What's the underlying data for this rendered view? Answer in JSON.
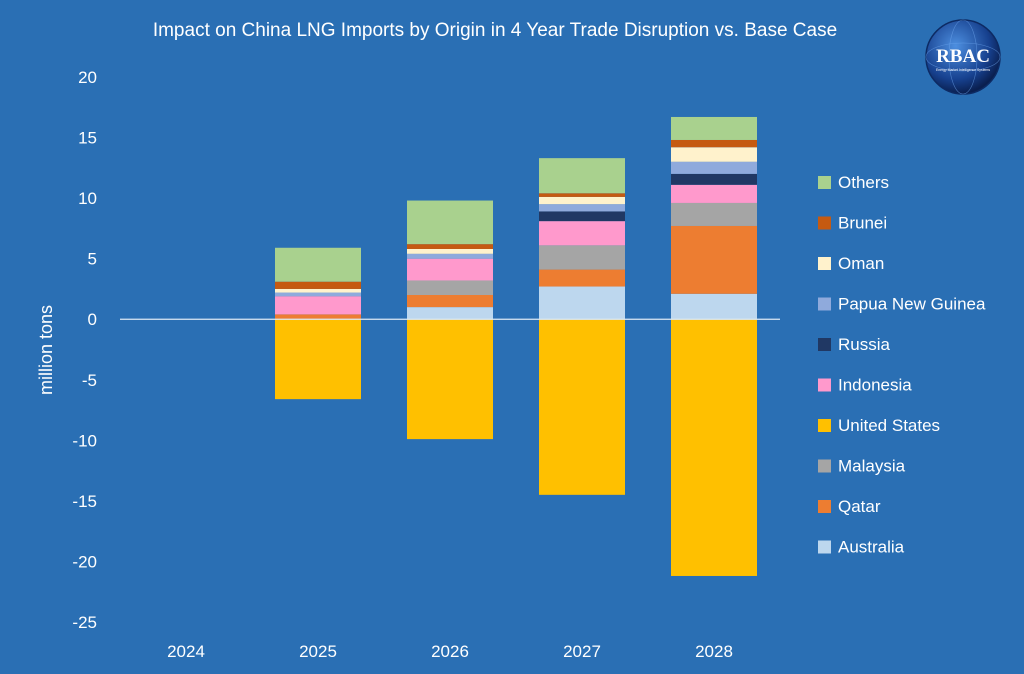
{
  "chart_data": {
    "type": "bar",
    "stacked": true,
    "title": "Impact on China LNG Imports by Origin in 4 Year Trade Disruption vs. Base Case",
    "xlabel": "",
    "ylabel": "million tons",
    "ylim": [
      -25,
      20
    ],
    "yticks": [
      20,
      15,
      10,
      5,
      0,
      -5,
      -10,
      -15,
      -20,
      -25
    ],
    "categories": [
      "2024",
      "2025",
      "2026",
      "2027",
      "2028"
    ],
    "grid": false,
    "legend_position": "right",
    "series": [
      {
        "name": "Australia",
        "color": "#bdd7ee",
        "values": [
          0,
          0,
          1.0,
          2.7,
          2.1
        ]
      },
      {
        "name": "Qatar",
        "color": "#ed7d31",
        "values": [
          0,
          0.4,
          1.0,
          1.4,
          5.6
        ]
      },
      {
        "name": "Malaysia",
        "color": "#a5a5a5",
        "values": [
          0,
          0,
          1.2,
          2.0,
          1.9
        ]
      },
      {
        "name": "United States",
        "color": "#ffc000",
        "values": [
          0,
          -6.6,
          -9.9,
          -14.5,
          -21.2
        ]
      },
      {
        "name": "Indonesia",
        "color": "#ff99cc",
        "values": [
          0,
          1.5,
          1.8,
          2.0,
          1.5
        ]
      },
      {
        "name": "Russia",
        "color": "#203864",
        "values": [
          0,
          0,
          0,
          0.8,
          0.9
        ]
      },
      {
        "name": "Papua New Guinea",
        "color": "#8faadc",
        "values": [
          0,
          0.3,
          0.4,
          0.6,
          1.0
        ]
      },
      {
        "name": "Oman",
        "color": "#fff2cc",
        "values": [
          0,
          0.3,
          0.4,
          0.6,
          1.2
        ]
      },
      {
        "name": "Brunei",
        "color": "#c55a11",
        "values": [
          0,
          0.6,
          0.4,
          0.3,
          0.6
        ]
      },
      {
        "name": "Others",
        "color": "#a9d18e",
        "values": [
          0,
          2.8,
          3.6,
          2.9,
          1.9
        ]
      }
    ],
    "legend_order": [
      "Others",
      "Brunei",
      "Oman",
      "Papua New Guinea",
      "Russia",
      "Indonesia",
      "United States",
      "Malaysia",
      "Qatar",
      "Australia"
    ]
  },
  "logo": {
    "text": "RBAC",
    "subtext": "Energy Market Intelligence Systems"
  },
  "colors": {
    "background": "#2a6fb4",
    "text": "#ffffff",
    "zero_line": "#dce8f5"
  }
}
